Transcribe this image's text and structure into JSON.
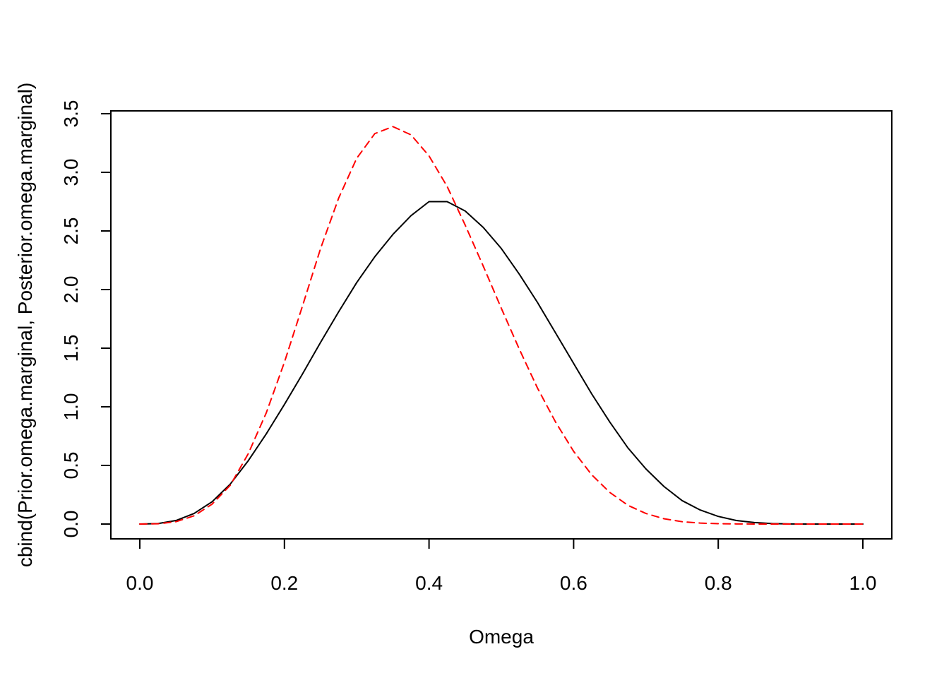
{
  "chart_data": {
    "type": "line",
    "title": "",
    "xlabel": "Omega",
    "ylabel": "cbind(Prior.omega.marginal, Posterior.omega.marginal)",
    "xlim": [
      0,
      1
    ],
    "ylim": [
      0,
      3.5
    ],
    "x_ticks": [
      "0.0",
      "0.2",
      "0.4",
      "0.6",
      "0.8",
      "1.0"
    ],
    "y_ticks": [
      "0.0",
      "0.5",
      "1.0",
      "1.5",
      "2.0",
      "2.5",
      "3.0",
      "3.5"
    ],
    "grid": false,
    "legend": "none",
    "series": [
      {
        "color": "#000000",
        "line_style": "solid",
        "x": [
          0.0,
          0.025,
          0.05,
          0.075,
          0.1,
          0.125,
          0.15,
          0.175,
          0.2,
          0.225,
          0.25,
          0.275,
          0.3,
          0.325,
          0.35,
          0.375,
          0.4,
          0.425,
          0.45,
          0.475,
          0.5,
          0.525,
          0.55,
          0.575,
          0.6,
          0.625,
          0.65,
          0.675,
          0.7,
          0.725,
          0.75,
          0.775,
          0.8,
          0.825,
          0.85,
          0.875,
          0.9,
          0.925,
          0.95,
          0.975,
          1.0
        ],
        "values": [
          0.0,
          0.004,
          0.03,
          0.09,
          0.19,
          0.34,
          0.54,
          0.77,
          1.02,
          1.28,
          1.55,
          1.81,
          2.06,
          2.28,
          2.47,
          2.63,
          2.75,
          2.75,
          2.67,
          2.53,
          2.35,
          2.13,
          1.89,
          1.63,
          1.37,
          1.11,
          0.87,
          0.65,
          0.47,
          0.32,
          0.2,
          0.12,
          0.065,
          0.03,
          0.013,
          0.004,
          0.001,
          0.0,
          0.0,
          0.0,
          0.0
        ]
      },
      {
        "color": "#ff0000",
        "line_style": "dashed",
        "x": [
          0.0,
          0.025,
          0.05,
          0.075,
          0.1,
          0.125,
          0.15,
          0.175,
          0.2,
          0.225,
          0.25,
          0.275,
          0.3,
          0.325,
          0.35,
          0.375,
          0.4,
          0.425,
          0.45,
          0.475,
          0.5,
          0.525,
          0.55,
          0.575,
          0.6,
          0.625,
          0.65,
          0.675,
          0.7,
          0.725,
          0.75,
          0.775,
          0.8,
          0.825,
          0.85,
          0.875,
          0.9,
          0.925,
          0.95,
          0.975,
          1.0
        ],
        "values": [
          0.0,
          0.002,
          0.02,
          0.07,
          0.17,
          0.33,
          0.6,
          0.95,
          1.38,
          1.86,
          2.35,
          2.78,
          3.12,
          3.33,
          3.39,
          3.32,
          3.14,
          2.88,
          2.55,
          2.2,
          1.84,
          1.49,
          1.16,
          0.87,
          0.62,
          0.42,
          0.27,
          0.16,
          0.09,
          0.045,
          0.02,
          0.008,
          0.003,
          0.001,
          0.0,
          0.0,
          0.0,
          0.0,
          0.0,
          0.0,
          0.0
        ]
      }
    ]
  }
}
